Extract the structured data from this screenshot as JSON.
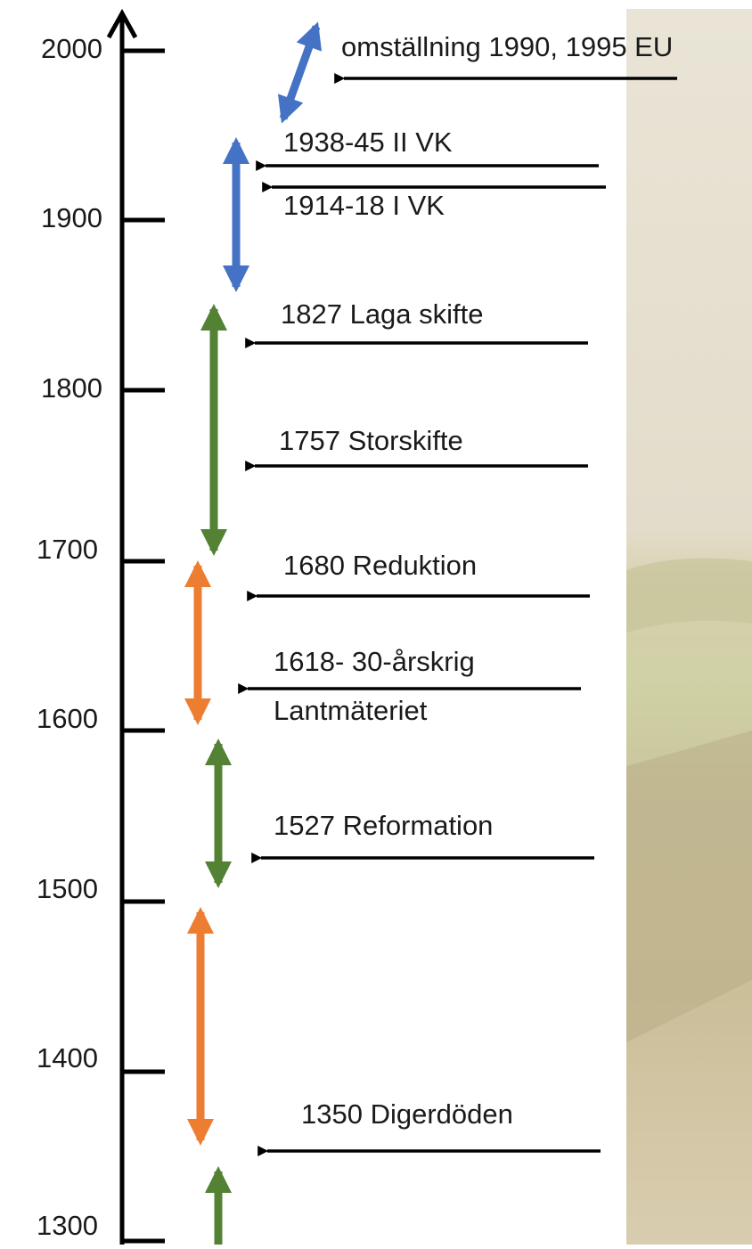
{
  "axis": {
    "ticks": [
      "2000",
      "1900",
      "1800",
      "1700",
      "1600",
      "1500",
      "1400",
      "1300"
    ]
  },
  "events": [
    {
      "lines": [
        "omställning 1990, 1995 EU"
      ]
    },
    {
      "lines": [
        "1938-45 II VK"
      ]
    },
    {
      "lines": [
        "1914-18 I VK"
      ]
    },
    {
      "lines": [
        "1827 Laga skifte"
      ]
    },
    {
      "lines": [
        "1757 Storskifte"
      ]
    },
    {
      "lines": [
        "1680 Reduktion"
      ]
    },
    {
      "lines": [
        "1618- 30-årskrig",
        "Lantmäteriet"
      ]
    },
    {
      "lines": [
        "1527 Reformation"
      ]
    },
    {
      "lines": [
        "1350 Digerdöden"
      ]
    }
  ]
}
